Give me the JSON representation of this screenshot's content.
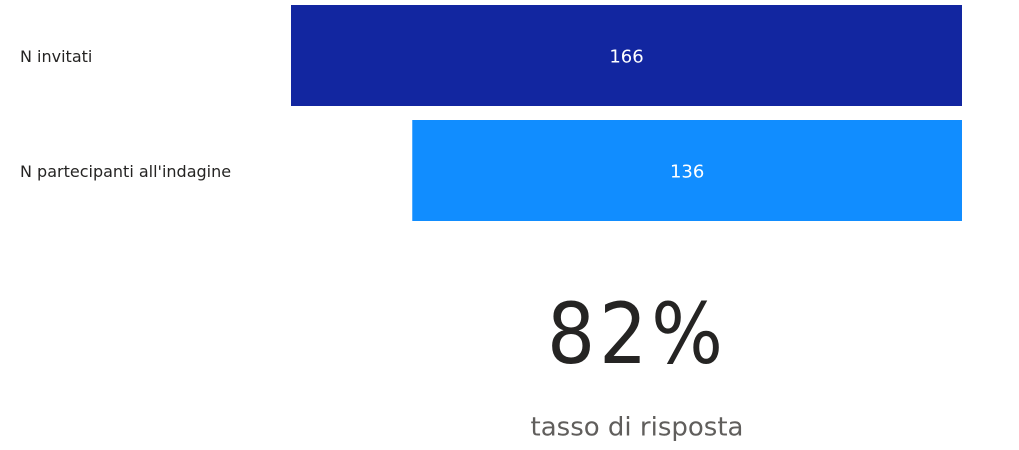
{
  "chart_data": [
    {
      "type": "funnel",
      "categories": [
        "N invitati",
        "N partecipanti all'indagine"
      ],
      "values": [
        166,
        136
      ],
      "colors": [
        "#1226a0",
        "#118dff"
      ]
    },
    {
      "type": "card",
      "values": [
        82
      ],
      "value_labels": [
        "82%"
      ],
      "label": "tasso di risposta"
    }
  ]
}
